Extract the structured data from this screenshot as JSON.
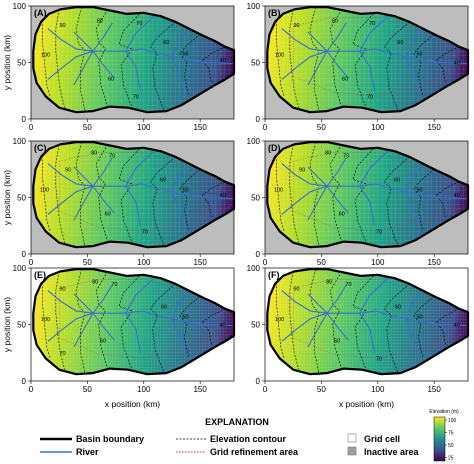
{
  "figure": {
    "axis": {
      "xlabel": "x position (km)",
      "ylabel": "y position (km)",
      "xticks": [
        0,
        50,
        100,
        150
      ],
      "yticks": [
        0,
        50,
        100
      ],
      "xlim": [
        0,
        180
      ],
      "ylim": [
        0,
        100
      ]
    },
    "colors": {
      "inactive": "#bdbdbd",
      "basin_boundary": "#000000",
      "river": "#3a6fd1",
      "contour": "#000000",
      "refinement": "#cc3355",
      "grid_cell": "#9aa0a6"
    },
    "colorbar": {
      "title": "Elevation (m)",
      "ticks": [
        "100",
        "75",
        "50",
        "25"
      ],
      "stops": [
        "#fde725",
        "#5ec962",
        "#21918c",
        "#3b528b",
        "#440154"
      ]
    }
  },
  "chart_data": [
    {
      "panel": "(A)",
      "type": "heatmap",
      "grid": "coarse",
      "inactive_area": true,
      "refinement": false,
      "xlim": [
        0,
        180
      ],
      "ylim": [
        0,
        100
      ],
      "contours": [
        {
          "label": "100",
          "x": 13,
          "y": 57
        },
        {
          "label": "90",
          "x": 28,
          "y": 83
        },
        {
          "label": "80",
          "x": 61,
          "y": 87
        },
        {
          "label": "70",
          "x": 96,
          "y": 85
        },
        {
          "label": "60",
          "x": 120,
          "y": 68
        },
        {
          "label": "50",
          "x": 137,
          "y": 58
        },
        {
          "label": "40",
          "x": 170,
          "y": 52
        },
        {
          "label": "60",
          "x": 71,
          "y": 36
        },
        {
          "label": "70",
          "x": 93,
          "y": 20
        }
      ]
    },
    {
      "panel": "(B)",
      "type": "heatmap",
      "grid": "coarse",
      "inactive_area": true,
      "refinement": true,
      "xlim": [
        0,
        180
      ],
      "ylim": [
        0,
        100
      ],
      "contours": [
        {
          "label": "100",
          "x": 13,
          "y": 57
        },
        {
          "label": "90",
          "x": 28,
          "y": 83
        },
        {
          "label": "80",
          "x": 62,
          "y": 87
        },
        {
          "label": "70",
          "x": 95,
          "y": 85
        },
        {
          "label": "60",
          "x": 120,
          "y": 68
        },
        {
          "label": "50",
          "x": 137,
          "y": 58
        },
        {
          "label": "40",
          "x": 170,
          "y": 50
        },
        {
          "label": "60",
          "x": 71,
          "y": 36
        },
        {
          "label": "70",
          "x": 93,
          "y": 20
        }
      ]
    },
    {
      "panel": "(C)",
      "type": "heatmap",
      "grid": "coarse",
      "inactive_area": true,
      "refinement": true,
      "xlim": [
        0,
        180
      ],
      "ylim": [
        0,
        100
      ],
      "contours": [
        {
          "label": "100",
          "x": 12,
          "y": 57
        },
        {
          "label": "90",
          "x": 33,
          "y": 75
        },
        {
          "label": "80",
          "x": 56,
          "y": 90
        },
        {
          "label": "70",
          "x": 72,
          "y": 87
        },
        {
          "label": "60",
          "x": 117,
          "y": 66
        },
        {
          "label": "50",
          "x": 137,
          "y": 57
        },
        {
          "label": "40",
          "x": 170,
          "y": 52
        },
        {
          "label": "60",
          "x": 68,
          "y": 36
        },
        {
          "label": "70",
          "x": 101,
          "y": 20
        }
      ]
    },
    {
      "panel": "(D)",
      "type": "heatmap",
      "grid": "coarse",
      "inactive_area": true,
      "refinement": true,
      "xlim": [
        0,
        180
      ],
      "ylim": [
        0,
        100
      ],
      "contours": [
        {
          "label": "100",
          "x": 12,
          "y": 57
        },
        {
          "label": "90",
          "x": 33,
          "y": 75
        },
        {
          "label": "80",
          "x": 56,
          "y": 90
        },
        {
          "label": "70",
          "x": 72,
          "y": 87
        },
        {
          "label": "60",
          "x": 117,
          "y": 66
        },
        {
          "label": "50",
          "x": 137,
          "y": 57
        },
        {
          "label": "40",
          "x": 170,
          "y": 52
        },
        {
          "label": "60",
          "x": 68,
          "y": 36
        },
        {
          "label": "70",
          "x": 101,
          "y": 20
        }
      ]
    },
    {
      "panel": "(E)",
      "type": "heatmap",
      "grid": "fine",
      "inactive_area": false,
      "refinement": true,
      "xlim": [
        0,
        180
      ],
      "ylim": [
        0,
        100
      ],
      "contours": [
        {
          "label": "100",
          "x": 13,
          "y": 55
        },
        {
          "label": "90",
          "x": 28,
          "y": 82
        },
        {
          "label": "80",
          "x": 57,
          "y": 88
        },
        {
          "label": "70",
          "x": 74,
          "y": 86
        },
        {
          "label": "60",
          "x": 118,
          "y": 66
        },
        {
          "label": "50",
          "x": 137,
          "y": 57
        },
        {
          "label": "40",
          "x": 170,
          "y": 50
        },
        {
          "label": "60",
          "x": 64,
          "y": 36
        },
        {
          "label": "70",
          "x": 28,
          "y": 25
        }
      ]
    },
    {
      "panel": "(F)",
      "type": "heatmap",
      "grid": "fine",
      "inactive_area": false,
      "refinement": true,
      "xlim": [
        0,
        180
      ],
      "ylim": [
        0,
        100
      ],
      "contours": [
        {
          "label": "100",
          "x": 13,
          "y": 55
        },
        {
          "label": "90",
          "x": 28,
          "y": 82
        },
        {
          "label": "80",
          "x": 57,
          "y": 88
        },
        {
          "label": "70",
          "x": 74,
          "y": 86
        },
        {
          "label": "60",
          "x": 118,
          "y": 66
        },
        {
          "label": "50",
          "x": 137,
          "y": 57
        },
        {
          "label": "40",
          "x": 170,
          "y": 50
        },
        {
          "label": "60",
          "x": 64,
          "y": 36
        },
        {
          "label": "70",
          "x": 101,
          "y": 20
        }
      ]
    }
  ],
  "basin": {
    "boundary": [
      [
        2,
        60
      ],
      [
        4,
        75
      ],
      [
        9,
        86
      ],
      [
        16,
        93
      ],
      [
        26,
        97
      ],
      [
        40,
        99
      ],
      [
        55,
        99
      ],
      [
        70,
        96
      ],
      [
        85,
        93
      ],
      [
        100,
        94
      ],
      [
        115,
        91
      ],
      [
        128,
        86
      ],
      [
        140,
        80
      ],
      [
        152,
        74
      ],
      [
        163,
        69
      ],
      [
        172,
        64
      ],
      [
        180,
        61
      ],
      [
        180,
        40
      ],
      [
        172,
        35
      ],
      [
        163,
        30
      ],
      [
        153,
        24
      ],
      [
        143,
        18
      ],
      [
        133,
        12
      ],
      [
        120,
        7
      ],
      [
        103,
        6
      ],
      [
        86,
        10
      ],
      [
        70,
        11
      ],
      [
        55,
        7
      ],
      [
        40,
        6
      ],
      [
        25,
        10
      ],
      [
        13,
        20
      ],
      [
        5,
        32
      ],
      [
        2,
        45
      ]
    ],
    "rivers": [
      [
        [
          38,
          77
        ],
        [
          48,
          67
        ],
        [
          55,
          60
        ],
        [
          68,
          60
        ],
        [
          84,
          60
        ],
        [
          98,
          62
        ],
        [
          112,
          58
        ],
        [
          125,
          55
        ],
        [
          140,
          52
        ],
        [
          155,
          50
        ],
        [
          180,
          49
        ]
      ],
      [
        [
          15,
          80
        ],
        [
          27,
          70
        ],
        [
          40,
          62
        ],
        [
          55,
          60
        ]
      ],
      [
        [
          15,
          35
        ],
        [
          27,
          45
        ],
        [
          40,
          55
        ],
        [
          55,
          60
        ]
      ],
      [
        [
          38,
          30
        ],
        [
          48,
          48
        ],
        [
          55,
          60
        ]
      ],
      [
        [
          55,
          60
        ],
        [
          64,
          72
        ],
        [
          72,
          85
        ]
      ],
      [
        [
          55,
          60
        ],
        [
          64,
          48
        ],
        [
          74,
          36
        ]
      ],
      [
        [
          84,
          60
        ],
        [
          93,
          76
        ],
        [
          110,
          92
        ]
      ],
      [
        [
          84,
          60
        ],
        [
          93,
          46
        ],
        [
          97,
          25
        ]
      ],
      [
        [
          125,
          55
        ],
        [
          131,
          70
        ],
        [
          140,
          80
        ]
      ],
      [
        [
          125,
          55
        ],
        [
          131,
          40
        ],
        [
          137,
          25
        ]
      ]
    ],
    "contour_lines": [
      [
        [
          10,
          90
        ],
        [
          10,
          70
        ],
        [
          12,
          50
        ],
        [
          14,
          30
        ],
        [
          17,
          20
        ]
      ],
      [
        [
          25,
          97
        ],
        [
          22,
          80
        ],
        [
          22,
          60
        ],
        [
          24,
          40
        ],
        [
          26,
          25
        ],
        [
          30,
          10
        ]
      ],
      [
        [
          45,
          99
        ],
        [
          40,
          80
        ],
        [
          42,
          67
        ],
        [
          48,
          60
        ],
        [
          44,
          45
        ],
        [
          44,
          25
        ],
        [
          48,
          7
        ]
      ],
      [
        [
          68,
          97
        ],
        [
          58,
          80
        ],
        [
          60,
          68
        ],
        [
          66,
          62
        ],
        [
          60,
          50
        ],
        [
          62,
          30
        ],
        [
          68,
          11
        ]
      ],
      [
        [
          96,
          93
        ],
        [
          82,
          78
        ],
        [
          78,
          66
        ],
        [
          90,
          62
        ],
        [
          80,
          48
        ],
        [
          82,
          30
        ],
        [
          90,
          9
        ]
      ],
      [
        [
          128,
          86
        ],
        [
          112,
          72
        ],
        [
          106,
          64
        ],
        [
          112,
          58
        ],
        [
          108,
          45
        ],
        [
          110,
          28
        ],
        [
          118,
          7
        ]
      ],
      [
        [
          150,
          75
        ],
        [
          138,
          65
        ],
        [
          132,
          58
        ],
        [
          138,
          50
        ],
        [
          136,
          38
        ],
        [
          140,
          20
        ]
      ],
      [
        [
          172,
          64
        ],
        [
          160,
          58
        ],
        [
          152,
          52
        ],
        [
          158,
          44
        ],
        [
          160,
          32
        ]
      ]
    ]
  },
  "panel_order": [
    "(A)",
    "(B)",
    "(C)",
    "(D)",
    "(E)",
    "(F)"
  ],
  "legend": {
    "title": "EXPLANATION",
    "items": {
      "basin_boundary": "Basin boundary",
      "river": "River",
      "elevation_contour": "Elevation contour",
      "grid_refinement_area": "Grid refinement area",
      "grid_cell": "Grid cell",
      "inactive_area": "Inactive area"
    }
  }
}
